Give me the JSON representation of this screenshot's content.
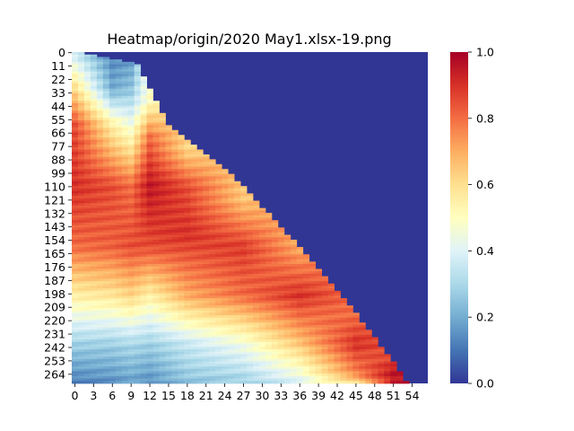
{
  "chart_data": {
    "type": "heatmap",
    "title": "Heatmap/origin/2020 May1.xlsx-19.png",
    "xlabel": "",
    "ylabel": "",
    "n_cols": 57,
    "n_rows": 272,
    "x_ticks": [
      "0",
      "3",
      "6",
      "9",
      "12",
      "15",
      "18",
      "21",
      "24",
      "27",
      "30",
      "33",
      "36",
      "39",
      "42",
      "45",
      "48",
      "51",
      "54"
    ],
    "y_ticks": [
      "0",
      "11",
      "22",
      "33",
      "44",
      "55",
      "66",
      "77",
      "88",
      "99",
      "110",
      "121",
      "132",
      "143",
      "154",
      "165",
      "176",
      "187",
      "198",
      "209",
      "220",
      "231",
      "242",
      "253",
      "264"
    ],
    "colorbar": {
      "range": [
        0.0,
        1.0
      ],
      "ticks": [
        "0.0",
        "0.2",
        "0.4",
        "0.6",
        "0.8",
        "1.0"
      ],
      "colormap": "RdYlBu_r",
      "stops": [
        "#313695",
        "#4575b4",
        "#74add1",
        "#abd9e9",
        "#e0f3f8",
        "#ffffbf",
        "#fee090",
        "#fdae61",
        "#f46d43",
        "#d73027",
        "#a50026"
      ]
    },
    "value_profile": {
      "masked_value": 0.0,
      "mask_rule": "cells with row index below the falling diagonal (upper-right triangle) are 0",
      "diagonal": [
        [
          0,
          0
        ],
        [
          10,
          10
        ],
        [
          15,
          60
        ],
        [
          25,
          100
        ],
        [
          35,
          155
        ],
        [
          45,
          215
        ],
        [
          51,
          255
        ],
        [
          53,
          271
        ]
      ],
      "column_profiles": [
        {
          "col": 0,
          "rows": [
            0,
            30,
            60,
            110,
            160,
            200,
            240,
            271
          ],
          "values": [
            0.35,
            0.6,
            0.85,
            0.9,
            0.8,
            0.55,
            0.28,
            0.12
          ]
        },
        {
          "col": 6,
          "rows": [
            0,
            30,
            60,
            110,
            160,
            200,
            240,
            271
          ],
          "values": [
            0.12,
            0.2,
            0.55,
            0.85,
            0.82,
            0.58,
            0.28,
            0.15
          ]
        },
        {
          "col": 9,
          "rows": [
            0,
            30,
            60,
            110,
            160,
            200,
            240,
            271
          ],
          "values": [
            0.15,
            0.25,
            0.45,
            0.8,
            0.85,
            0.62,
            0.3,
            0.18
          ]
        },
        {
          "col": 12,
          "rows": [
            40,
            70,
            110,
            160,
            200,
            240,
            271
          ],
          "values": [
            0.5,
            0.8,
            0.95,
            0.85,
            0.55,
            0.28,
            0.15
          ]
        },
        {
          "col": 18,
          "rows": [
            80,
            110,
            150,
            200,
            240,
            271
          ],
          "values": [
            0.62,
            0.85,
            0.9,
            0.7,
            0.35,
            0.25
          ]
        },
        {
          "col": 27,
          "rows": [
            120,
            160,
            200,
            240,
            271
          ],
          "values": [
            0.65,
            0.88,
            0.8,
            0.45,
            0.28
          ]
        },
        {
          "col": 36,
          "rows": [
            160,
            200,
            240,
            271
          ],
          "values": [
            0.7,
            0.9,
            0.65,
            0.4
          ]
        },
        {
          "col": 45,
          "rows": [
            215,
            240,
            265,
            271
          ],
          "values": [
            0.8,
            0.9,
            0.75,
            0.6
          ]
        },
        {
          "col": 51,
          "rows": [
            250,
            262,
            271
          ],
          "values": [
            0.85,
            0.95,
            0.95
          ]
        }
      ]
    }
  }
}
